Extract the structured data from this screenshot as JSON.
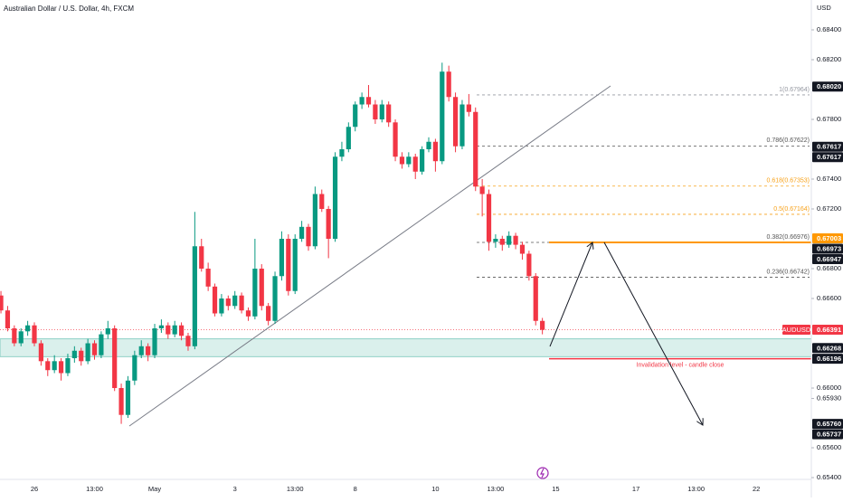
{
  "chart_data": {
    "type": "candlestick",
    "title": "Australian Dollar / U.S. Dollar, 4h, FXCM",
    "currency": "USD",
    "symbol": "AUDUSD",
    "up_color": "#089981",
    "down_color": "#f23645",
    "grid": false,
    "ylim": [
      0.65388,
      0.686
    ],
    "yticks": [
      {
        "value": 0.684,
        "label": "0.68400"
      },
      {
        "value": 0.682,
        "label": "0.68200"
      },
      {
        "value": 0.678,
        "label": "0.67800"
      },
      {
        "value": 0.674,
        "label": "0.67400"
      },
      {
        "value": 0.672,
        "label": "0.67200"
      },
      {
        "value": 0.668,
        "label": "0.66800"
      },
      {
        "value": 0.666,
        "label": "0.66600"
      },
      {
        "value": 0.66,
        "label": "0.66000"
      },
      {
        "value": 0.6593,
        "label": "0.65930"
      },
      {
        "value": 0.656,
        "label": "0.65600"
      },
      {
        "value": 0.654,
        "label": "0.65400"
      }
    ],
    "categories": [
      null,
      null,
      null,
      null,
      null,
      "26",
      null,
      null,
      null,
      null,
      null,
      null,
      null,
      null,
      "13:00",
      null,
      null,
      null,
      null,
      null,
      null,
      null,
      null,
      "May",
      null,
      null,
      null,
      null,
      null,
      null,
      null,
      null,
      null,
      null,
      null,
      "3",
      null,
      null,
      null,
      null,
      null,
      null,
      null,
      null,
      "13:00",
      null,
      null,
      null,
      null,
      null,
      null,
      null,
      null,
      "8",
      null,
      null,
      null,
      null,
      null,
      null,
      null,
      null,
      null,
      null,
      null,
      "10",
      null,
      null,
      null,
      null,
      null,
      null,
      null,
      null,
      "13:00",
      null,
      null,
      null,
      null,
      null,
      null,
      null,
      null,
      "15",
      null,
      null,
      null,
      null,
      null,
      null,
      null,
      null,
      null,
      null,
      null,
      "17",
      null,
      null,
      null,
      null,
      null,
      null,
      null,
      null,
      "13:00",
      null,
      null,
      null,
      null,
      null,
      null,
      null,
      null,
      "22"
    ],
    "ohlc": [
      [
        0.6662,
        0.6665,
        0.665,
        0.6652
      ],
      [
        0.6652,
        0.6655,
        0.6638,
        0.664
      ],
      [
        0.664,
        0.6642,
        0.6628,
        0.663
      ],
      [
        0.663,
        0.664,
        0.6628,
        0.6638
      ],
      [
        0.6638,
        0.6645,
        0.6635,
        0.6642
      ],
      [
        0.6642,
        0.6644,
        0.6628,
        0.663
      ],
      [
        0.663,
        0.6632,
        0.6615,
        0.6618
      ],
      [
        0.6618,
        0.662,
        0.6608,
        0.6612
      ],
      [
        0.6612,
        0.6622,
        0.661,
        0.6618
      ],
      [
        0.6618,
        0.662,
        0.6605,
        0.661
      ],
      [
        0.661,
        0.6623,
        0.6608,
        0.662
      ],
      [
        0.662,
        0.6628,
        0.6617,
        0.6625
      ],
      [
        0.6625,
        0.6627,
        0.6615,
        0.6618
      ],
      [
        0.6618,
        0.6633,
        0.6616,
        0.663
      ],
      [
        0.663,
        0.6632,
        0.6619,
        0.6622
      ],
      [
        0.6622,
        0.6638,
        0.662,
        0.6636
      ],
      [
        0.6636,
        0.6645,
        0.6633,
        0.664
      ],
      [
        0.664,
        0.6642,
        0.6598,
        0.66
      ],
      [
        0.66,
        0.6603,
        0.6576,
        0.6582
      ],
      [
        0.6582,
        0.6608,
        0.658,
        0.6605
      ],
      [
        0.6605,
        0.6625,
        0.6602,
        0.6622
      ],
      [
        0.6622,
        0.6632,
        0.662,
        0.6628
      ],
      [
        0.6628,
        0.663,
        0.6618,
        0.6622
      ],
      [
        0.6622,
        0.6643,
        0.662,
        0.664
      ],
      [
        0.664,
        0.6646,
        0.6637,
        0.6642
      ],
      [
        0.6642,
        0.6644,
        0.6633,
        0.6636
      ],
      [
        0.6636,
        0.6645,
        0.6634,
        0.6642
      ],
      [
        0.6642,
        0.6644,
        0.6632,
        0.6635
      ],
      [
        0.6635,
        0.6637,
        0.6625,
        0.6628
      ],
      [
        0.6628,
        0.6718,
        0.6626,
        0.6695
      ],
      [
        0.6695,
        0.67,
        0.6678,
        0.668
      ],
      [
        0.668,
        0.6684,
        0.6665,
        0.6668
      ],
      [
        0.6668,
        0.667,
        0.6648,
        0.665
      ],
      [
        0.665,
        0.6663,
        0.6648,
        0.666
      ],
      [
        0.666,
        0.6662,
        0.6652,
        0.6655
      ],
      [
        0.6655,
        0.6665,
        0.6653,
        0.6662
      ],
      [
        0.6662,
        0.6664,
        0.665,
        0.6652
      ],
      [
        0.6652,
        0.6654,
        0.6645,
        0.6648
      ],
      [
        0.6648,
        0.67,
        0.6646,
        0.668
      ],
      [
        0.668,
        0.6683,
        0.6652,
        0.6655
      ],
      [
        0.6655,
        0.6657,
        0.6642,
        0.6645
      ],
      [
        0.6645,
        0.6678,
        0.6643,
        0.6675
      ],
      [
        0.6675,
        0.6705,
        0.6672,
        0.67
      ],
      [
        0.67,
        0.6703,
        0.6662,
        0.6665
      ],
      [
        0.6665,
        0.6703,
        0.6663,
        0.67
      ],
      [
        0.67,
        0.6712,
        0.6698,
        0.6708
      ],
      [
        0.6708,
        0.671,
        0.6692,
        0.6695
      ],
      [
        0.6695,
        0.6735,
        0.6693,
        0.673
      ],
      [
        0.673,
        0.6733,
        0.6718,
        0.672
      ],
      [
        0.672,
        0.6722,
        0.6687,
        0.67
      ],
      [
        0.67,
        0.6758,
        0.6698,
        0.6755
      ],
      [
        0.6755,
        0.6765,
        0.6752,
        0.676
      ],
      [
        0.676,
        0.6778,
        0.6758,
        0.6775
      ],
      [
        0.6775,
        0.6792,
        0.6772,
        0.679
      ],
      [
        0.679,
        0.6798,
        0.6787,
        0.6795
      ],
      [
        0.6795,
        0.6803,
        0.6788,
        0.679
      ],
      [
        0.679,
        0.6793,
        0.6777,
        0.678
      ],
      [
        0.678,
        0.6793,
        0.6778,
        0.679
      ],
      [
        0.679,
        0.6792,
        0.6775,
        0.6778
      ],
      [
        0.6778,
        0.678,
        0.6752,
        0.6755
      ],
      [
        0.6755,
        0.6758,
        0.6747,
        0.675
      ],
      [
        0.675,
        0.6758,
        0.6748,
        0.6755
      ],
      [
        0.6755,
        0.6757,
        0.674,
        0.6745
      ],
      [
        0.6745,
        0.6762,
        0.6743,
        0.676
      ],
      [
        0.676,
        0.6768,
        0.6758,
        0.6765
      ],
      [
        0.6765,
        0.6767,
        0.6745,
        0.6752
      ],
      [
        0.6752,
        0.6818,
        0.675,
        0.6812
      ],
      [
        0.6812,
        0.6816,
        0.6792,
        0.6795
      ],
      [
        0.6795,
        0.6798,
        0.6758,
        0.6762
      ],
      [
        0.6762,
        0.6793,
        0.676,
        0.679
      ],
      [
        0.679,
        0.6797,
        0.6782,
        0.6785
      ],
      [
        0.6785,
        0.6788,
        0.6732,
        0.6735
      ],
      [
        0.6735,
        0.674,
        0.6715,
        0.673
      ],
      [
        0.673,
        0.6733,
        0.6692,
        0.6698
      ],
      [
        0.6698,
        0.6703,
        0.6694,
        0.67
      ],
      [
        0.67,
        0.6702,
        0.6692,
        0.6696
      ],
      [
        0.6696,
        0.6705,
        0.6694,
        0.6702
      ],
      [
        0.6702,
        0.6704,
        0.6693,
        0.6696
      ],
      [
        0.6696,
        0.6698,
        0.6686,
        0.669
      ],
      [
        0.669,
        0.6692,
        0.6672,
        0.6675
      ],
      [
        0.6675,
        0.6677,
        0.6642,
        0.6645
      ],
      [
        0.6645,
        0.6647,
        0.6636,
        0.6639
      ],
      null,
      null,
      null,
      null,
      null,
      null,
      null,
      null,
      null,
      null,
      null,
      null,
      null,
      null,
      null,
      null,
      null,
      null,
      null,
      null,
      null,
      null,
      null,
      null,
      null,
      null,
      null,
      null,
      null,
      null,
      null,
      null
    ],
    "fib_levels": [
      {
        "value": 0.67964,
        "label": "1(0.67964)",
        "color": "#9598a1"
      },
      {
        "value": 0.67622,
        "label": "0.786(0.67622)",
        "color": "#555"
      },
      {
        "value": 0.67353,
        "label": "0.618(0.67353)",
        "color": "#f7a21b"
      },
      {
        "value": 0.67164,
        "label": "0.5(0.67164)",
        "color": "#f7a21b"
      },
      {
        "value": 0.66976,
        "label": "0.382(0.66976)",
        "color": "#555"
      },
      {
        "value": 0.66742,
        "label": "0.236(0.66742)",
        "color": "#555"
      }
    ],
    "zone": [
      0.6621,
      0.6633
    ],
    "zone_color": "#089981",
    "resistance": {
      "value": 0.66976,
      "color": "#ff9800"
    },
    "invalidation": {
      "value": 0.66196,
      "text": "Invalidation level - candle close",
      "color": "#f23645"
    },
    "price_labels": [
      {
        "value": 0.6802,
        "label": "0.68020",
        "color": "#131722"
      },
      {
        "value": 0.67617,
        "label": "0.67617",
        "color": "#131722"
      },
      {
        "value": 0.67617,
        "label": "0.67617",
        "color": "#131722"
      },
      {
        "value": 0.67003,
        "label": "0.67003",
        "color": "#ff9800"
      },
      {
        "value": 0.66973,
        "label": "0.66973",
        "color": "#131722"
      },
      {
        "value": 0.66947,
        "label": "0.66947",
        "color": "#131722"
      },
      {
        "value": 0.66391,
        "label": "0.66391",
        "color": "#f23645"
      },
      {
        "value": 0.66268,
        "label": "0.66268",
        "color": "#131722"
      },
      {
        "value": 0.66196,
        "label": "0.66196",
        "color": "#131722"
      },
      {
        "value": 0.6576,
        "label": "0.65760",
        "color": "#131722"
      },
      {
        "value": 0.65737,
        "label": "0.65737",
        "color": "#131722"
      }
    ]
  }
}
